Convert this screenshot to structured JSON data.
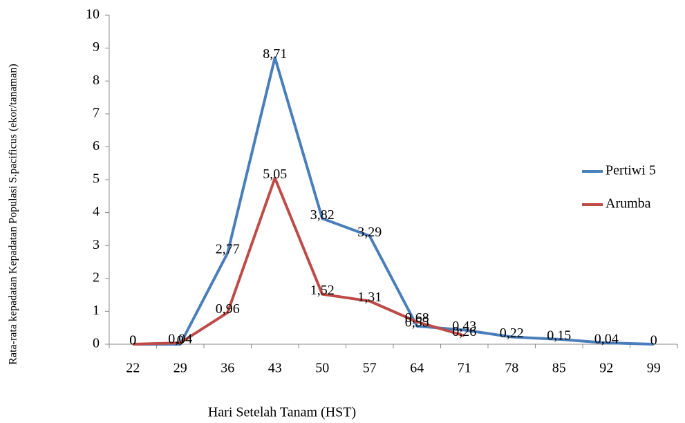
{
  "chart_data": {
    "type": "line",
    "y_label": "Rata-rata kepadatan  Kepadatan Populasi S.pacificus (ekor/tanaman)",
    "x_label": "Hari Setelah Tanam (HST)",
    "categories": [
      "22",
      "29",
      "36",
      "43",
      "50",
      "57",
      "64",
      "71",
      "78",
      "85",
      "92",
      "99"
    ],
    "series": [
      {
        "name": "Pertiwi 5",
        "color": "#4a7ebb",
        "values": [
          0,
          0,
          2.77,
          8.71,
          3.82,
          3.29,
          0.55,
          0.43,
          0.22,
          0.15,
          0.04,
          0
        ],
        "value_labels": [
          "0",
          "0",
          "2,77",
          "8,71",
          "3,82",
          "3,29",
          "0,55",
          "0,43",
          "0,22",
          "0,15",
          "0,04",
          "0"
        ]
      },
      {
        "name": "Arumba",
        "color": "#be4b48",
        "values": [
          0,
          0.04,
          0.96,
          5.05,
          1.52,
          1.31,
          0.68,
          0.26,
          null,
          null,
          null,
          null
        ],
        "value_labels": [
          "0",
          "0,04",
          "0,96",
          "5,05",
          "1,52",
          "1,31",
          "0,68",
          "0,26",
          null,
          null,
          null,
          null
        ]
      }
    ],
    "ylim": [
      0,
      10
    ],
    "yticks": [
      0,
      1,
      2,
      3,
      4,
      5,
      6,
      7,
      8,
      9,
      10
    ],
    "grid": false,
    "legend": "right"
  }
}
